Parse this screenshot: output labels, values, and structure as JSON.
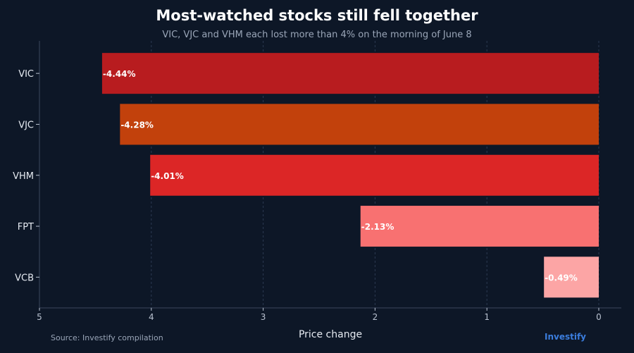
{
  "header": {
    "title": "Most-watched stocks still fell together",
    "subtitle": "VIC, VJC and VHM each lost more than 4% on the morning of June 8"
  },
  "footer": {
    "source": "Source: Investify compilation",
    "brand": "Investify"
  },
  "colors": {
    "background": "#0d1727",
    "brand": "#3b7ddd"
  },
  "chart_data": {
    "type": "bar",
    "orientation": "horizontal",
    "title": "Most-watched stocks still fell together",
    "subtitle": "VIC, VJC and VHM each lost more than 4% on the morning of June 8",
    "xlabel": "Price change",
    "ylabel": "",
    "categories": [
      "VIC",
      "VJC",
      "VHM",
      "FPT",
      "VCB"
    ],
    "values": [
      -4.44,
      -4.28,
      -4.01,
      -2.13,
      -0.49
    ],
    "value_labels": [
      "-4.44%",
      "-4.28%",
      "-4.01%",
      "-2.13%",
      "-0.49%"
    ],
    "bar_colors": [
      "#b81c1f",
      "#c2410c",
      "#dc2626",
      "#f87171",
      "#fca5a5"
    ],
    "x_ticks": [
      5,
      4,
      3,
      2,
      1,
      0
    ],
    "x_tick_labels": [
      "5",
      "4",
      "3",
      "2",
      "1",
      "0"
    ],
    "xlim": [
      5,
      0
    ],
    "x_axis_reversed": true,
    "grid": "vertical dashed"
  }
}
